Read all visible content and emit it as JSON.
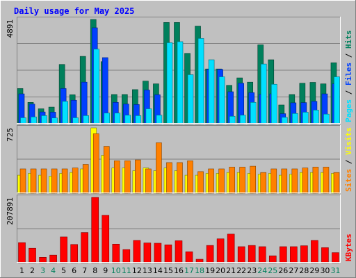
{
  "chart_data": {
    "type": "bar",
    "title": "Daily usage for May 2025",
    "categories": [
      "1",
      "2",
      "3",
      "4",
      "5",
      "6",
      "7",
      "8",
      "9",
      "10",
      "11",
      "12",
      "13",
      "14",
      "15",
      "16",
      "17",
      "18",
      "19",
      "20",
      "21",
      "22",
      "23",
      "24",
      "25",
      "26",
      "27",
      "28",
      "29",
      "30",
      "31"
    ],
    "weekend_days": [
      "3",
      "4",
      "10",
      "11",
      "17",
      "18",
      "24",
      "25",
      "31"
    ],
    "panels": [
      {
        "name": "requests",
        "ymax_label": "4891",
        "ymax": 4891,
        "right_labels": [
          "Pages",
          "Files",
          "Hits"
        ],
        "series": [
          {
            "name": "Hits",
            "color": "#00805c",
            "values": [
              1650,
              1000,
              700,
              780,
              2780,
              1360,
              3160,
              4891,
              2910,
              1370,
              1370,
              1600,
              2000,
              1870,
              4750,
              4750,
              3300,
              4580,
              2570,
              2570,
              1800,
              2150,
              1950,
              3700,
              3000,
              880,
              1370,
              1900,
              1940,
              1870,
              2860
            ]
          },
          {
            "name": "Files",
            "color": "#0040ff",
            "values": [
              1400,
              920,
              550,
              540,
              1650,
              1100,
              1950,
              4500,
              3100,
              1000,
              920,
              900,
              1580,
              1360,
              0,
              0,
              0,
              0,
              2550,
              2550,
              1500,
              1900,
              1460,
              1380,
              1400,
              470,
              980,
              990,
              1050,
              1400,
              1870
            ]
          },
          {
            "name": "Pages",
            "color": "#00e0ff",
            "values": [
              280,
              320,
              380,
              270,
              1050,
              280,
              380,
              3500,
              500,
              500,
              400,
              380,
              700,
              400,
              3800,
              3850,
              2300,
              4000,
              3000,
              2200,
              350,
              400,
              1000,
              2800,
              1850,
              300,
              480,
              540,
              640,
              450,
              2200
            ]
          }
        ]
      },
      {
        "name": "visits",
        "ymax_label": "725",
        "ymax": 725,
        "right_labels": [
          "Sites",
          "Visits"
        ],
        "series": [
          {
            "name": "Visits",
            "color": "#ffff00",
            "values": [
              200,
              220,
              200,
              190,
              220,
              230,
              270,
              725,
              420,
              280,
              280,
              250,
              280,
              250,
              280,
              250,
              200,
              200,
              220,
              220,
              230,
              230,
              220,
              210,
              220,
              200,
              210,
              230,
              230,
              230,
              220
            ]
          },
          {
            "name": "Sites",
            "color": "#ff8000",
            "values": [
              270,
              270,
              270,
              270,
              270,
              280,
              320,
              660,
              520,
              360,
              360,
              370,
              270,
              560,
              340,
              340,
              360,
              240,
              270,
              270,
              290,
              290,
              300,
              230,
              270,
              270,
              270,
              280,
              290,
              290,
              230
            ]
          }
        ]
      },
      {
        "name": "kbytes",
        "ymax_label": "207891",
        "ymax": 207891,
        "right_labels": [
          "KBytes"
        ],
        "series": [
          {
            "name": "KBytes",
            "color": "#ff0000",
            "values": [
              64000,
              46000,
              17000,
              24000,
              82000,
              58000,
              96000,
              207891,
              151000,
              59000,
              42000,
              71000,
              63000,
              62000,
              57000,
              70000,
              35000,
              11000,
              55000,
              76000,
              91000,
              51000,
              55000,
              51000,
              22000,
              51000,
              51000,
              54000,
              71000,
              48000,
              32000
            ]
          }
        ]
      }
    ]
  }
}
